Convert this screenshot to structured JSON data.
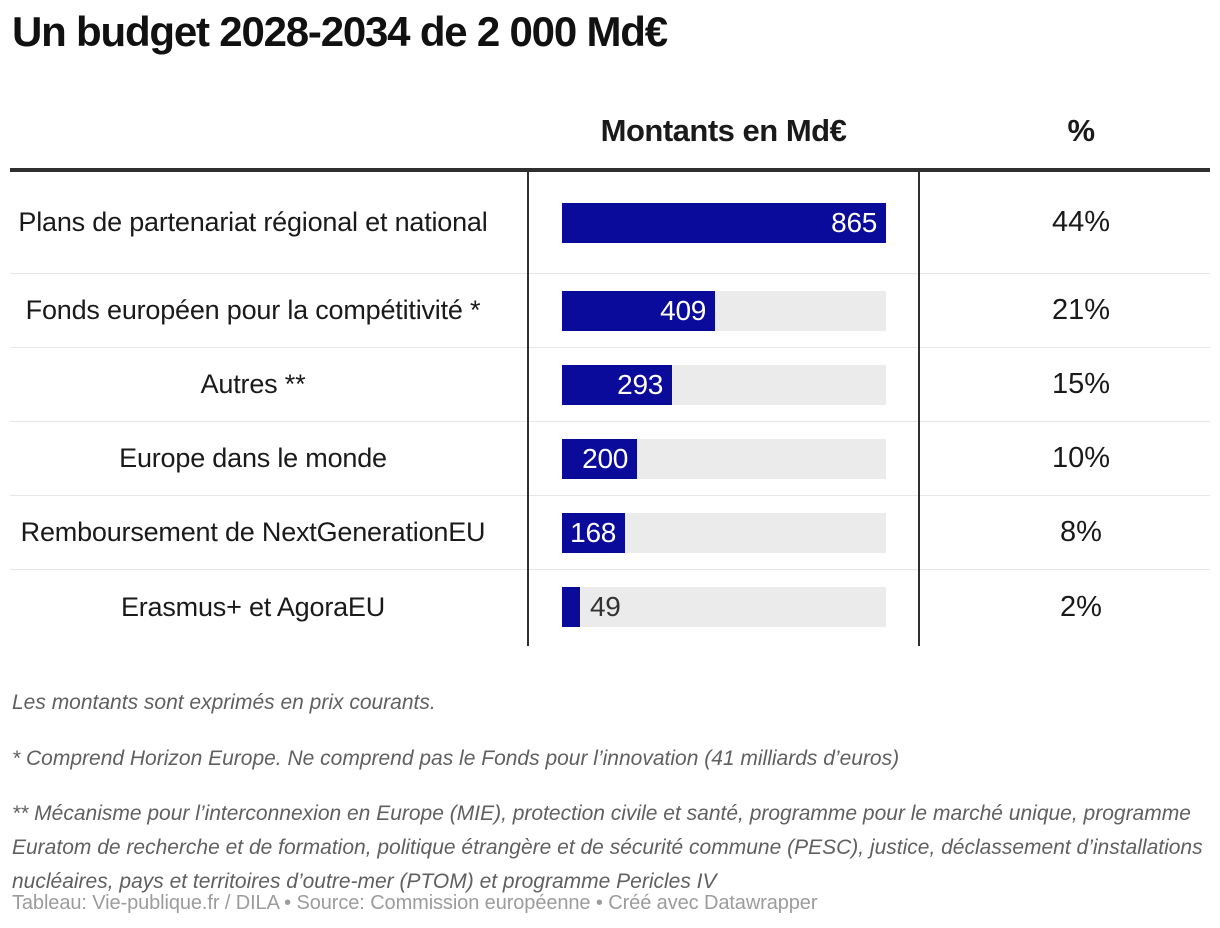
{
  "title": "Un budget 2028-2034 de 2 000 Md€",
  "table": {
    "bar_column_header": "Montants en Md€",
    "pct_column_header": "%",
    "max_value": 865,
    "rows": [
      {
        "label": "Plans de partenariat régional et national",
        "value": 865,
        "pct": "44%"
      },
      {
        "label": "Fonds européen pour la compétitivité *",
        "value": 409,
        "pct": "21%"
      },
      {
        "label": "Autres **",
        "value": 293,
        "pct": "15%"
      },
      {
        "label": "Europe dans le monde",
        "value": 200,
        "pct": "10%"
      },
      {
        "label": "Remboursement de NextGenerationEU",
        "value": 168,
        "pct": "8%"
      },
      {
        "label": "Erasmus+ et AgoraEU",
        "value": 49,
        "pct": "2%"
      }
    ]
  },
  "notes": [
    "Les montants sont exprimés en prix courants.",
    "* Comprend Horizon Europe. Ne comprend pas le Fonds pour l’innovation (41 milliards d’euros)",
    "** Mécanisme pour l’interconnexion en Europe (MIE), protection civile et santé, programme pour le marché unique, programme Euratom de recherche et de formation, politique étrangère et de sécurité commune (PESC), justice, déclassement d’installations nucléaires, pays et territoires d’outre-mer (PTOM) et programme Pericles IV"
  ],
  "footer": "Tableau: Vie-publique.fr / DILA • Source: Commission européenne • Créé avec Datawrapper",
  "colors": {
    "bar": "#0b0b9b",
    "track": "#ebebeb",
    "rule_dark": "#2f2f2f",
    "rule_light": "#e7e7e7"
  },
  "chart_data": {
    "type": "bar",
    "orientation": "horizontal",
    "title": "Un budget 2028-2034 de 2 000 Md€",
    "categories": [
      "Plans de partenariat régional et national",
      "Fonds européen pour la compétitivité *",
      "Autres **",
      "Europe dans le monde",
      "Remboursement de NextGenerationEU",
      "Erasmus+ et AgoraEU"
    ],
    "series": [
      {
        "name": "Montants en Md€",
        "values": [
          865,
          409,
          293,
          200,
          168,
          49
        ]
      },
      {
        "name": "%",
        "values": [
          44,
          21,
          15,
          10,
          8,
          2
        ]
      }
    ],
    "xlim": [
      0,
      865
    ],
    "grid": false,
    "legend_position": "none",
    "value_labels": "inside-end",
    "total": "2 000 Md€"
  }
}
